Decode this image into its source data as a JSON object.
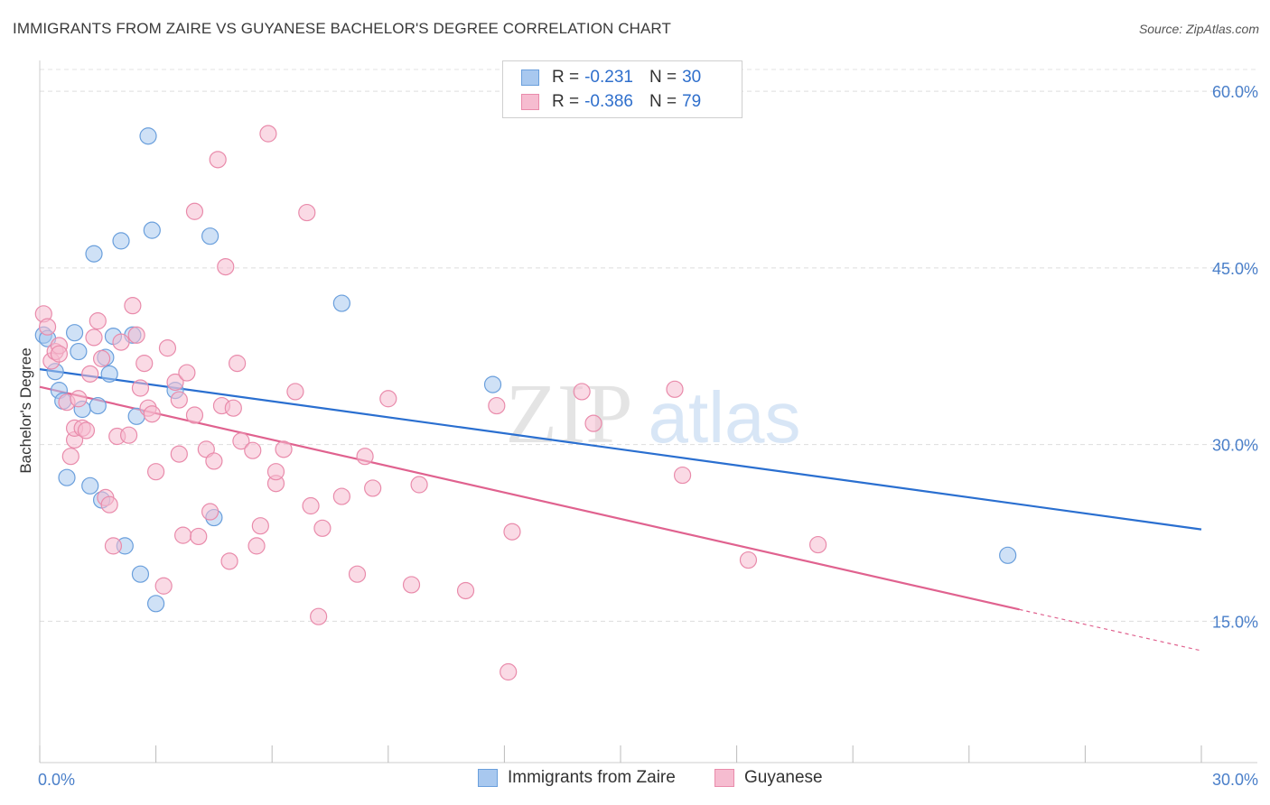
{
  "title": "IMMIGRANTS FROM ZAIRE VS GUYANESE BACHELOR'S DEGREE CORRELATION CHART",
  "source": "Source: ZipAtlas.com",
  "watermark": {
    "zip": "ZIP",
    "atlas": "atlas"
  },
  "legend": {
    "rows": [
      {
        "r_label": "R =",
        "r_value": "-0.231",
        "n_label": "N =",
        "n_value": "30",
        "color": "#a8c8ef",
        "edge": "#6a9fdc"
      },
      {
        "r_label": "R =",
        "r_value": "-0.386",
        "n_label": "N =",
        "n_value": "79",
        "color": "#f6bcd0",
        "edge": "#e98bab"
      }
    ]
  },
  "chart_data": {
    "type": "scatter",
    "title": "IMMIGRANTS FROM ZAIRE VS GUYANESE BACHELOR'S DEGREE CORRELATION CHART",
    "xlabel": "",
    "ylabel": "Bachelor's Degree",
    "xlim": [
      0,
      30
    ],
    "ylim": [
      3,
      63
    ],
    "x_tick_labels": [
      "0.0%",
      "30.0%"
    ],
    "y_ticks": [
      15,
      30,
      45,
      60
    ],
    "y_tick_labels": [
      "15.0%",
      "30.0%",
      "45.0%",
      "60.0%"
    ],
    "grid": true,
    "legend_position": "bottom",
    "series": [
      {
        "name": "Immigrants from Zaire",
        "color": "#a8c8ef",
        "edge": "#6a9fdc",
        "line_color": "#2a6fd0",
        "trend": {
          "x": [
            0,
            30
          ],
          "y": [
            36.4,
            22.8
          ]
        },
        "points": [
          [
            0.1,
            39.3
          ],
          [
            0.2,
            39.0
          ],
          [
            0.4,
            36.2
          ],
          [
            0.5,
            34.6
          ],
          [
            0.6,
            33.7
          ],
          [
            0.7,
            27.2
          ],
          [
            0.9,
            39.5
          ],
          [
            1.0,
            37.9
          ],
          [
            1.1,
            33.0
          ],
          [
            1.3,
            26.5
          ],
          [
            1.4,
            46.2
          ],
          [
            1.5,
            33.3
          ],
          [
            1.6,
            25.3
          ],
          [
            1.7,
            37.4
          ],
          [
            1.8,
            36.0
          ],
          [
            1.9,
            39.2
          ],
          [
            2.1,
            47.3
          ],
          [
            2.2,
            21.4
          ],
          [
            2.4,
            39.3
          ],
          [
            2.5,
            32.4
          ],
          [
            2.6,
            19.0
          ],
          [
            2.8,
            56.2
          ],
          [
            2.9,
            48.2
          ],
          [
            3.0,
            16.5
          ],
          [
            3.5,
            34.6
          ],
          [
            4.4,
            47.7
          ],
          [
            4.5,
            23.8
          ],
          [
            7.8,
            42.0
          ],
          [
            11.7,
            35.1
          ],
          [
            25.0,
            20.6
          ]
        ]
      },
      {
        "name": "Guyanese",
        "color": "#f6bcd0",
        "edge": "#e98bab",
        "line_color": "#e0628f",
        "trend": {
          "x": [
            0,
            25.3
          ],
          "y": [
            34.9,
            16.0
          ]
        },
        "trend_dashed": {
          "x": [
            25.3,
            30
          ],
          "y": [
            16.0,
            12.5
          ]
        },
        "points": [
          [
            0.1,
            41.1
          ],
          [
            0.2,
            40.0
          ],
          [
            0.3,
            37.1
          ],
          [
            0.4,
            37.9
          ],
          [
            0.5,
            38.4
          ],
          [
            0.5,
            37.7
          ],
          [
            0.7,
            33.6
          ],
          [
            0.8,
            29.0
          ],
          [
            0.9,
            30.4
          ],
          [
            0.9,
            31.4
          ],
          [
            1.0,
            33.9
          ],
          [
            1.1,
            31.4
          ],
          [
            1.2,
            31.2
          ],
          [
            1.3,
            36.0
          ],
          [
            1.4,
            39.1
          ],
          [
            1.5,
            40.5
          ],
          [
            1.6,
            37.3
          ],
          [
            1.7,
            25.5
          ],
          [
            1.8,
            24.9
          ],
          [
            1.9,
            21.4
          ],
          [
            2.0,
            30.7
          ],
          [
            2.1,
            38.7
          ],
          [
            2.3,
            30.8
          ],
          [
            2.4,
            41.8
          ],
          [
            2.5,
            39.3
          ],
          [
            2.6,
            34.8
          ],
          [
            2.7,
            36.9
          ],
          [
            2.8,
            33.1
          ],
          [
            2.9,
            32.6
          ],
          [
            3.0,
            27.7
          ],
          [
            3.2,
            18.0
          ],
          [
            3.3,
            38.2
          ],
          [
            3.5,
            35.3
          ],
          [
            3.6,
            33.8
          ],
          [
            3.6,
            29.2
          ],
          [
            3.7,
            22.3
          ],
          [
            3.8,
            36.1
          ],
          [
            4.0,
            32.5
          ],
          [
            4.0,
            49.8
          ],
          [
            4.1,
            22.2
          ],
          [
            4.3,
            29.6
          ],
          [
            4.4,
            24.3
          ],
          [
            4.5,
            28.6
          ],
          [
            4.6,
            54.2
          ],
          [
            4.7,
            33.3
          ],
          [
            4.8,
            45.1
          ],
          [
            4.9,
            20.1
          ],
          [
            5.0,
            33.1
          ],
          [
            5.1,
            36.9
          ],
          [
            5.2,
            30.3
          ],
          [
            5.5,
            29.5
          ],
          [
            5.6,
            21.4
          ],
          [
            5.7,
            23.1
          ],
          [
            5.9,
            56.4
          ],
          [
            6.1,
            26.7
          ],
          [
            6.1,
            27.7
          ],
          [
            6.3,
            29.6
          ],
          [
            6.6,
            34.5
          ],
          [
            6.9,
            49.7
          ],
          [
            7.0,
            24.8
          ],
          [
            7.2,
            15.4
          ],
          [
            7.3,
            22.9
          ],
          [
            7.8,
            25.6
          ],
          [
            8.2,
            19.0
          ],
          [
            8.4,
            29.0
          ],
          [
            8.6,
            26.3
          ],
          [
            9.0,
            33.9
          ],
          [
            9.6,
            18.1
          ],
          [
            9.8,
            26.6
          ],
          [
            11.0,
            17.6
          ],
          [
            11.8,
            33.3
          ],
          [
            12.1,
            10.7
          ],
          [
            12.2,
            22.6
          ],
          [
            14.0,
            34.5
          ],
          [
            14.3,
            31.8
          ],
          [
            16.4,
            34.7
          ],
          [
            16.6,
            27.4
          ],
          [
            18.3,
            20.2
          ],
          [
            20.1,
            21.5
          ]
        ]
      }
    ]
  }
}
